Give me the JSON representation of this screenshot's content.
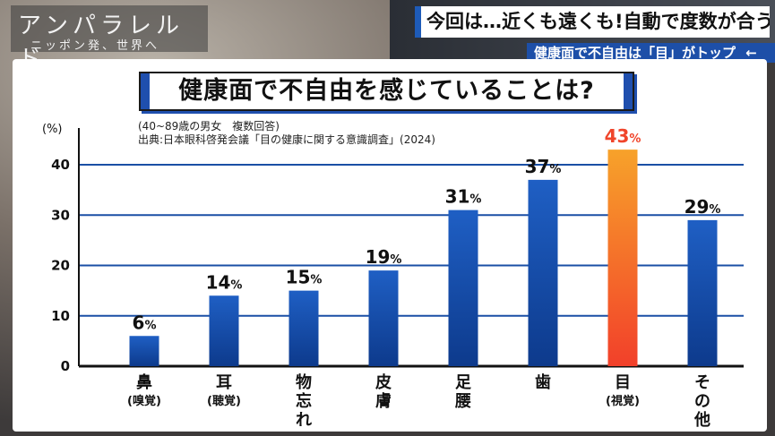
{
  "logo": {
    "line1": "アンパラレルド",
    "line2": "ニッポン発、世界へ"
  },
  "headline": "今回は…近くも遠くも!自動で度数が合うメガネ",
  "subhead": "健康面で不自由は「目」がトップ",
  "subhead_arrow": "←",
  "chart_data": {
    "type": "bar",
    "title": "健康面で不自由を感じていることは?",
    "note_lines": [
      "(40~89歳の男女　複数回答)",
      "出典:日本眼科啓発会議「目の健康に関する意識調査」(2024)"
    ],
    "ylabel": "(%)",
    "ylim": [
      0,
      45
    ],
    "yticks": [
      0,
      10,
      20,
      30,
      40
    ],
    "unit": "%",
    "categories": [
      {
        "main": "鼻",
        "sub": "(嗅覚)"
      },
      {
        "main": "耳",
        "sub": "(聴覚)"
      },
      {
        "main": "物忘れ",
        "sub": ""
      },
      {
        "main": "皮膚",
        "sub": ""
      },
      {
        "main": "足腰",
        "sub": ""
      },
      {
        "main": "歯",
        "sub": ""
      },
      {
        "main": "目",
        "sub": "(視覚)"
      },
      {
        "main": "その他",
        "sub": ""
      }
    ],
    "values": [
      6,
      14,
      15,
      19,
      31,
      37,
      43,
      29
    ],
    "highlight_index": 6,
    "colors": {
      "bar": "#1f5fc4",
      "bar_dark": "#0d3a8c",
      "highlight": "#f7a22a",
      "highlight_dark": "#f2402a",
      "highlight_label": "#f0452b"
    },
    "grid": true
  }
}
